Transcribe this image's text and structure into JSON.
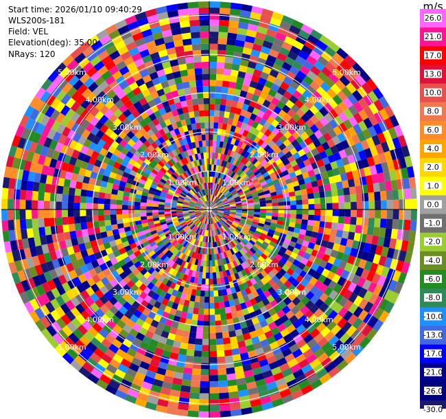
{
  "header": {
    "start_time": "Start time: 2026/01/10 09:40:29",
    "instrument": "WLS200s-181",
    "field": "Field: VEL",
    "elevation": "Elevation(deg): 35.00",
    "nrays": "NRays: 120"
  },
  "colorbar": {
    "unit": "m/s",
    "ticks": [
      "26.0",
      "21.0",
      "17.0",
      "13.0",
      "10.0",
      "8.0",
      "6.0",
      "4.0",
      "2.0",
      "1.0",
      "0.0",
      "-1.0",
      "-2.0",
      "-4.0",
      "-6.0",
      "-8.0",
      "-10.0",
      "-13.0",
      "-17.0",
      "-21.0",
      "-26.0",
      "-30.0"
    ],
    "colors": [
      "#ff66ff",
      "#ff1493",
      "#ff0000",
      "#e0103b",
      "#e8504d",
      "#f07850",
      "#ff8c28",
      "#ffa500",
      "#ffd700",
      "#ffff00",
      "#a0a0a0",
      "#707070",
      "#9acd32",
      "#6b8e23",
      "#228b22",
      "#2e8b57",
      "#1e90ff",
      "#4169e1",
      "#0000ff",
      "#00008b",
      "#000080",
      "#191970"
    ]
  },
  "chart_data": {
    "type": "heatmap",
    "subtype": "polar-ppi",
    "field": "VEL",
    "units": "m/s",
    "n_rays": 120,
    "elevation_deg": 35.0,
    "range_ring_labels": [
      "1.00km",
      "2.00km",
      "3.00km",
      "4.00km",
      "5.00km"
    ],
    "value_range": [
      -30.0,
      26.0
    ],
    "note_values": "velocity field appears as noise; categorical colors per the colorbar"
  }
}
